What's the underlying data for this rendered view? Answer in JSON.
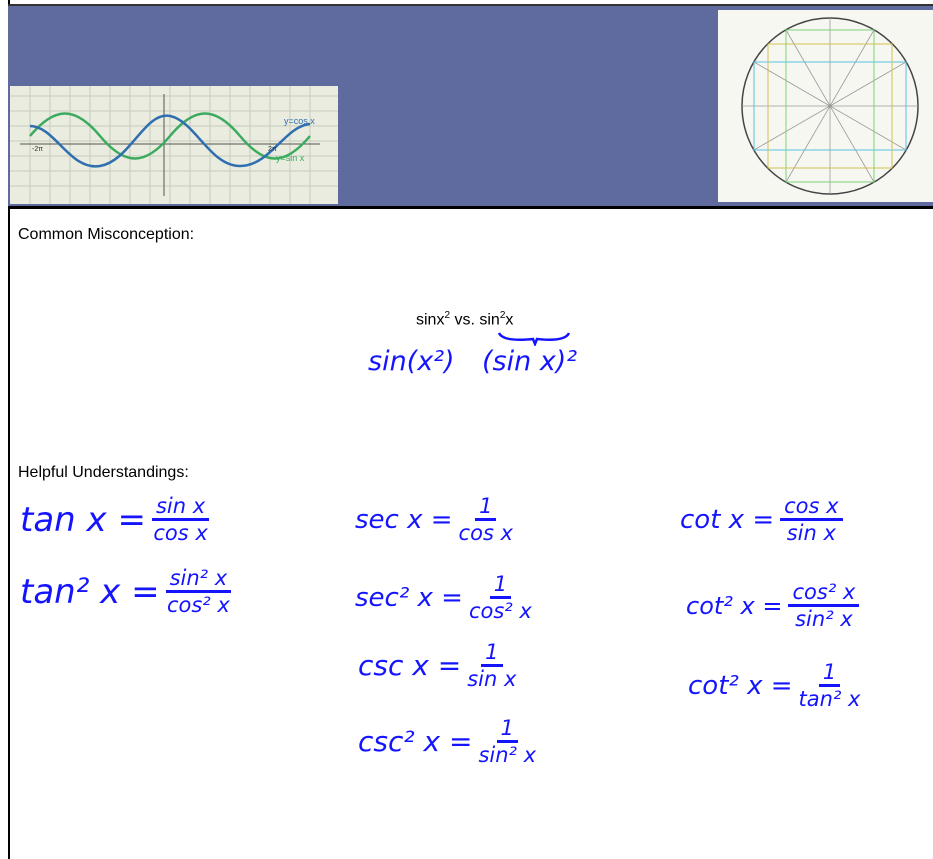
{
  "header": {
    "graph_labels": {
      "cos": "y=cos x",
      "sin": "y=sin x",
      "neg": "-2π",
      "pos": "2π"
    }
  },
  "misconception": {
    "label": "Common Misconception:",
    "typed": [
      "sinx",
      "2",
      "vs.",
      "sin",
      "2",
      "x"
    ],
    "handwritten": [
      "sin(x²)",
      "(sin x)²"
    ]
  },
  "helpful": {
    "label": "Helpful Understandings:",
    "formulas": [
      {
        "lhs": "tan x =",
        "num": "sin x",
        "den": "cos x"
      },
      {
        "lhs": "tan² x =",
        "num": "sin² x",
        "den": "cos² x"
      },
      {
        "lhs": "sec x =",
        "num": "1",
        "den": "cos x"
      },
      {
        "lhs": "sec² x =",
        "num": "1",
        "den": "cos² x"
      },
      {
        "lhs": "csc x =",
        "num": "1",
        "den": "sin x"
      },
      {
        "lhs": "csc² x =",
        "num": "1",
        "den": "sin² x"
      },
      {
        "lhs": "cot x =",
        "num": "cos x",
        "den": "sin x"
      },
      {
        "lhs": "cot² x =",
        "num": "cos² x",
        "den": "sin² x"
      },
      {
        "lhs": "cot² x =",
        "num": "1",
        "den": "tan² x"
      }
    ]
  }
}
